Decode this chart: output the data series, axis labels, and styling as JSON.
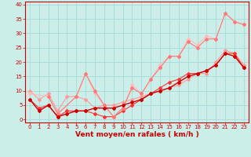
{
  "xlabel": "Vent moyen/en rafales ( km/h )",
  "xlim": [
    -0.5,
    23.5
  ],
  "ylim": [
    -1,
    41
  ],
  "xticks": [
    0,
    1,
    2,
    3,
    4,
    5,
    6,
    7,
    8,
    9,
    10,
    11,
    12,
    13,
    14,
    15,
    16,
    17,
    18,
    19,
    20,
    21,
    22,
    23
  ],
  "yticks": [
    0,
    5,
    10,
    15,
    20,
    25,
    30,
    35,
    40
  ],
  "bg_color": "#cceee8",
  "grid_color": "#aadddd",
  "series": [
    {
      "x": [
        0,
        1,
        2,
        3,
        4,
        5,
        6,
        7,
        8,
        9,
        10,
        11,
        12,
        13,
        14,
        15,
        16,
        17,
        18,
        19,
        20,
        21,
        22,
        23
      ],
      "y": [
        10,
        7,
        9,
        3,
        8,
        8,
        7,
        4,
        5,
        5,
        6,
        7,
        8,
        9,
        10,
        11,
        12,
        14,
        16,
        16,
        20,
        24,
        23,
        19
      ],
      "color": "#ff9999",
      "lw": 0.8
    },
    {
      "x": [
        0,
        1,
        2,
        3,
        4,
        5,
        6,
        7,
        8,
        9,
        10,
        11,
        12,
        13,
        14,
        15,
        16,
        17,
        18,
        19,
        20,
        21,
        22,
        23
      ],
      "y": [
        7,
        4,
        5,
        1,
        3,
        3,
        3,
        2,
        1,
        1,
        3,
        5,
        7,
        9,
        11,
        13,
        14,
        16,
        16,
        17,
        19,
        23,
        23,
        18
      ],
      "color": "#ff3333",
      "lw": 0.8
    },
    {
      "x": [
        0,
        2,
        3,
        5,
        6,
        7,
        8,
        9,
        10,
        11,
        12,
        13,
        14,
        15,
        16,
        17,
        18,
        19,
        20,
        21,
        22,
        23
      ],
      "y": [
        9,
        8,
        2,
        8,
        16,
        9,
        5,
        1,
        4,
        12,
        9,
        14,
        19,
        22,
        22,
        28,
        26,
        29,
        28,
        37,
        34,
        33
      ],
      "color": "#ffbbbb",
      "lw": 0.8
    },
    {
      "x": [
        2,
        3,
        5,
        6,
        7,
        8,
        9,
        10,
        11,
        12,
        13,
        14,
        15,
        16,
        17,
        18,
        19,
        20,
        21,
        22,
        23
      ],
      "y": [
        8,
        2,
        8,
        16,
        10,
        5,
        1,
        4,
        11,
        9,
        14,
        18,
        22,
        22,
        27,
        25,
        28,
        28,
        37,
        34,
        33
      ],
      "color": "#ff7777",
      "lw": 0.8
    },
    {
      "x": [
        0,
        1,
        2,
        3,
        4,
        5,
        6,
        7,
        8,
        9,
        10,
        11,
        12,
        13,
        14,
        15,
        16,
        17,
        18,
        19,
        20,
        21,
        22,
        23
      ],
      "y": [
        7,
        3,
        5,
        1,
        2,
        3,
        3,
        4,
        4,
        4,
        5,
        6,
        7,
        9,
        10,
        11,
        13,
        15,
        16,
        17,
        19,
        23,
        22,
        18
      ],
      "color": "#cc0000",
      "lw": 1.0
    }
  ],
  "marker": "D",
  "markersize": 2.0,
  "tick_fontsize": 5.0,
  "xlabel_fontsize": 6.5
}
